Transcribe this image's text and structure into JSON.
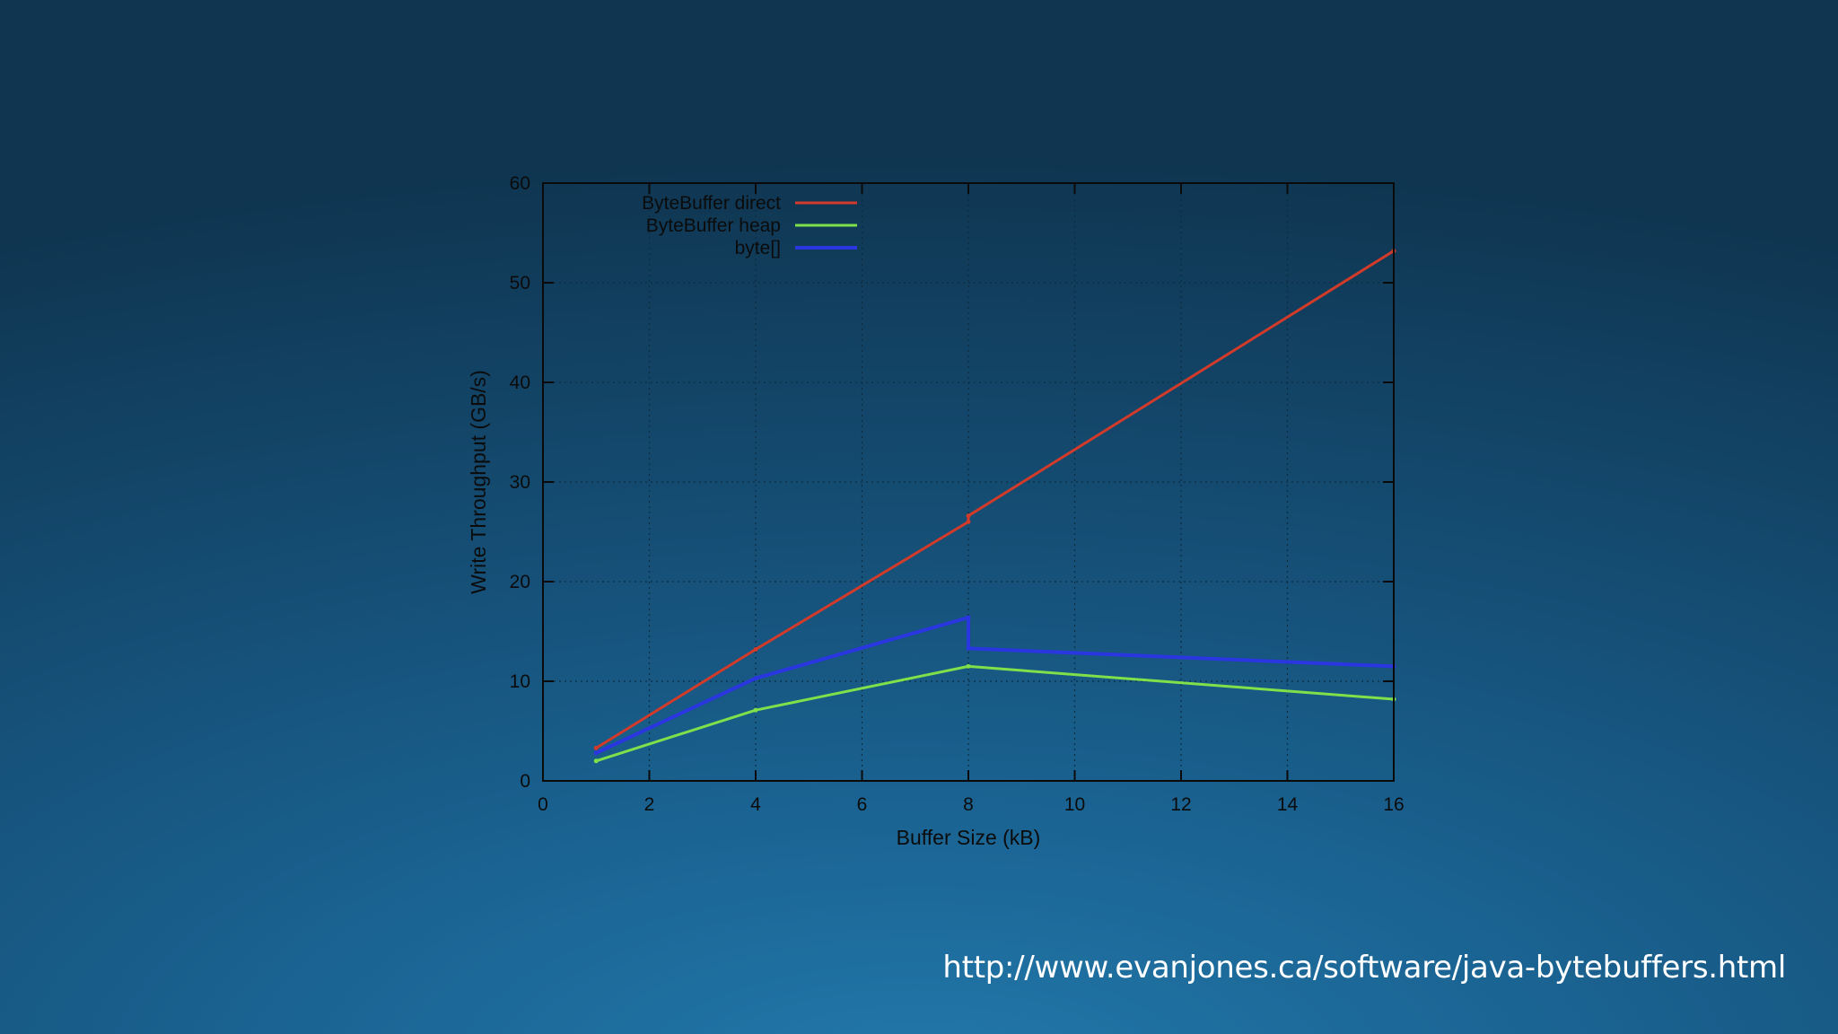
{
  "slide": {
    "source_url": "http://www.evanjones.ca/software/java-bytebuffers.html"
  },
  "chart_data": {
    "type": "line",
    "title": "",
    "xlabel": "Buffer Size (kB)",
    "ylabel": "Write Throughput (GB/s)",
    "xlim": [
      0,
      16
    ],
    "ylim": [
      0,
      60
    ],
    "xticks": [
      0,
      2,
      4,
      6,
      8,
      10,
      12,
      14,
      16
    ],
    "yticks": [
      0,
      10,
      20,
      30,
      40,
      50,
      60
    ],
    "grid": true,
    "legend_position": "top-left",
    "series": [
      {
        "name": "ByteBuffer direct",
        "color": "#d23a2a",
        "x": [
          1,
          4,
          8,
          8,
          16
        ],
        "y": [
          3.3,
          13.2,
          26.0,
          26.6,
          53.2
        ]
      },
      {
        "name": "ByteBuffer heap",
        "color": "#7fe04a",
        "x": [
          1,
          4,
          8,
          16
        ],
        "y": [
          2.0,
          7.1,
          11.5,
          8.2
        ]
      },
      {
        "name": "byte[]",
        "color": "#2a36e0",
        "x": [
          1,
          4,
          8,
          8,
          16
        ],
        "y": [
          2.8,
          10.3,
          16.4,
          13.3,
          11.5
        ]
      }
    ]
  }
}
